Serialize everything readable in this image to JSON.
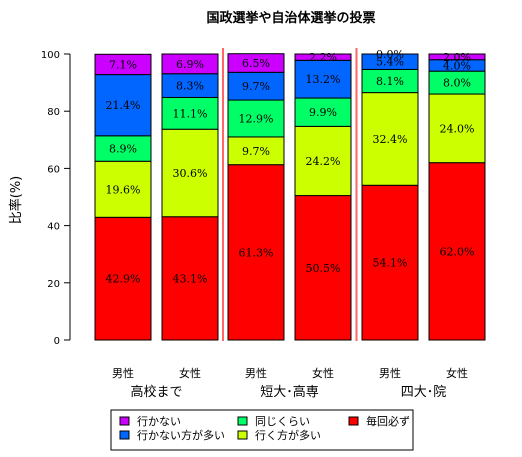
{
  "chart_data": {
    "type": "bar",
    "stacked": true,
    "title": "国政選挙や自治体選挙の投票",
    "ylabel": "比率(%)",
    "ylim": [
      0,
      100
    ],
    "yticks": [
      0,
      20,
      40,
      60,
      80,
      100
    ],
    "categories": [
      "男性",
      "女性",
      "男性",
      "女性",
      "男性",
      "女性"
    ],
    "groups": [
      "高校まで",
      "短大･高専",
      "四大･院"
    ],
    "group_of_category": [
      0,
      0,
      1,
      1,
      2,
      2
    ],
    "series": [
      {
        "name": "毎回必ず",
        "color": "#ff0000",
        "values": [
          42.9,
          43.1,
          61.3,
          50.5,
          54.1,
          62.0
        ]
      },
      {
        "name": "行く方が多い",
        "color": "#ccff00",
        "values": [
          19.6,
          30.6,
          9.7,
          24.2,
          32.4,
          24.0
        ]
      },
      {
        "name": "同じくらい",
        "color": "#00ff66",
        "values": [
          8.9,
          11.1,
          12.9,
          9.9,
          8.1,
          8.0
        ]
      },
      {
        "name": "行かない方が多い",
        "color": "#0066ff",
        "values": [
          21.4,
          8.3,
          9.7,
          13.2,
          5.4,
          4.0
        ]
      },
      {
        "name": "行かない",
        "color": "#cc00ff",
        "values": [
          7.1,
          6.9,
          6.5,
          2.2,
          0.0,
          2.0
        ]
      }
    ],
    "segment_labels": [
      [
        "42.9%",
        "43.1%",
        "61.3%",
        "50.5%",
        "54.1%",
        "62.0%"
      ],
      [
        "19.6%",
        "30.6%",
        "9.7%",
        "24.2%",
        "32.4%",
        "24.0%"
      ],
      [
        "8.9%",
        "11.1%",
        "12.9%",
        "9.9%",
        "8.1%",
        "8.0%"
      ],
      [
        "21.4%",
        "8.3%",
        "9.7%",
        "13.2%",
        "5.4%",
        "4.0%"
      ],
      [
        "7.1%",
        "6.9%",
        "6.5%",
        "2.2%",
        "0.0%",
        "2.0%"
      ]
    ],
    "separator_color": "#ff6666",
    "legend_position": "bottom",
    "legend_order": [
      "行かない",
      "同じくらい",
      "毎回必ず",
      "行かない方が多い",
      "行く方が多い"
    ]
  }
}
